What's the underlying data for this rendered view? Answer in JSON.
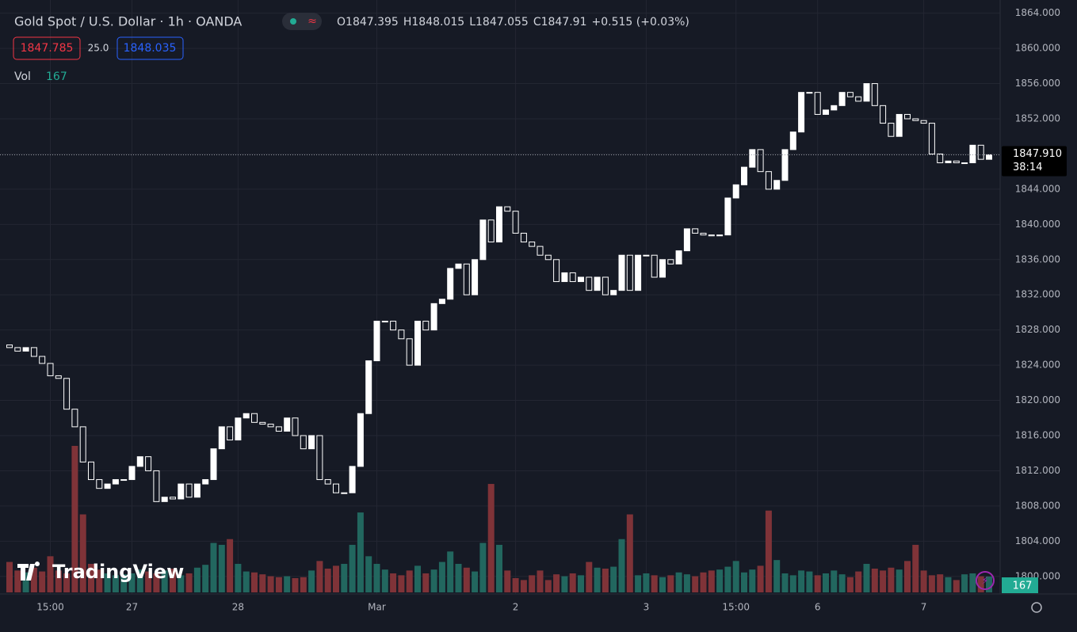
{
  "chart_data": {
    "type": "candlestick",
    "title": "Gold Spot / U.S. Dollar · 1h · OANDA",
    "ohlc": [
      {
        "label": "O",
        "value": 1847.395
      },
      {
        "label": "H",
        "value": 1848.015
      },
      {
        "label": "L",
        "value": 1847.055
      },
      {
        "label": "C",
        "value": 1847.91
      }
    ],
    "change": "+0.515 (+0.03%)",
    "bid": "1847.785",
    "spread": "25.0",
    "ask": "1848.035",
    "volume_label": "Vol",
    "watermark": "TradingView",
    "last_price": {
      "value": 1847.91,
      "label": "1847.910"
    },
    "countdown": "38:14",
    "up_color": "#ffffff",
    "down_color": "#161a25",
    "volume_up_color": "#22675f",
    "volume_down_color": "#7f3338",
    "volume_badge_color": "#22ab94",
    "ylim": [
      1798,
      1865.5
    ],
    "yticks": [
      {
        "value": 1800,
        "label": "1800.000"
      },
      {
        "value": 1804,
        "label": "1804.000"
      },
      {
        "value": 1808,
        "label": "1808.000"
      },
      {
        "value": 1812,
        "label": "1812.000"
      },
      {
        "value": 1816,
        "label": "1816.000"
      },
      {
        "value": 1820,
        "label": "1820.000"
      },
      {
        "value": 1824,
        "label": "1824.000"
      },
      {
        "value": 1828,
        "label": "1828.000"
      },
      {
        "value": 1832,
        "label": "1832.000"
      },
      {
        "value": 1836,
        "label": "1836.000"
      },
      {
        "value": 1840,
        "label": "1840.000"
      },
      {
        "value": 1844,
        "label": "1844.000"
      },
      {
        "value": 1848,
        "label": "1848.000"
      },
      {
        "value": 1852,
        "label": "1852.000"
      },
      {
        "value": 1856,
        "label": "1856.000"
      },
      {
        "value": 1860,
        "label": "1860.000"
      },
      {
        "value": 1864,
        "label": "1864.000"
      }
    ],
    "grid": true,
    "categories": [
      null,
      null,
      null,
      null,
      null,
      "15:00",
      null,
      null,
      null,
      null,
      null,
      null,
      null,
      null,
      null,
      "27",
      null,
      null,
      null,
      null,
      null,
      null,
      null,
      null,
      null,
      null,
      null,
      null,
      "28",
      null,
      null,
      null,
      null,
      null,
      null,
      null,
      null,
      null,
      null,
      null,
      null,
      null,
      null,
      null,
      null,
      "Mar",
      null,
      null,
      null,
      null,
      null,
      null,
      null,
      null,
      null,
      null,
      null,
      null,
      null,
      null,
      null,
      null,
      "2",
      null,
      null,
      null,
      null,
      null,
      null,
      null,
      null,
      null,
      null,
      null,
      null,
      null,
      null,
      null,
      "3",
      null,
      null,
      null,
      null,
      null,
      null,
      null,
      null,
      null,
      null,
      "15:00",
      null,
      null,
      null,
      null,
      null,
      null,
      null,
      null,
      null,
      "6",
      null,
      null,
      null,
      null,
      null,
      null,
      null,
      null,
      null,
      null,
      null,
      null,
      "7",
      null,
      null,
      null,
      null,
      null,
      null,
      null,
      null
    ],
    "open": [
      1826.3,
      1826.0,
      1825.6,
      1826.0,
      1825.0,
      1824.2,
      1822.8,
      1822.5,
      1819.0,
      1817.0,
      1813.0,
      1811.0,
      1810.0,
      1810.5,
      1811.0,
      1811.0,
      1812.5,
      1813.6,
      1812.0,
      1808.5,
      1809.0,
      1808.8,
      1810.5,
      1809.0,
      1810.5,
      1811.0,
      1814.5,
      1817.0,
      1815.5,
      1818.0,
      1818.5,
      1817.5,
      1817.3,
      1817.0,
      1816.5,
      1818.0,
      1816.0,
      1814.5,
      1816.0,
      1811.0,
      1810.5,
      1809.5,
      1809.5,
      1812.5,
      1818.5,
      1824.5,
      1829.0,
      1829.0,
      1828.0,
      1827.0,
      1824.0,
      1829.0,
      1828.0,
      1831.0,
      1831.5,
      1835.0,
      1835.5,
      1832.0,
      1836.0,
      1840.5,
      1838.0,
      1842.0,
      1841.5,
      1839.0,
      1838.0,
      1837.5,
      1836.5,
      1836.0,
      1833.5,
      1834.5,
      1833.5,
      1834.0,
      1832.5,
      1834.0,
      1832.0,
      1832.5,
      1836.5,
      1832.5,
      1836.5,
      1836.5,
      1834.0,
      1836.0,
      1835.5,
      1837.0,
      1839.5,
      1839.0,
      1838.8,
      1838.7,
      1838.8,
      1843.0,
      1844.5,
      1846.5,
      1848.5,
      1846.0,
      1844.0,
      1845.0,
      1848.5,
      1850.5,
      1855.0,
      1855.0,
      1852.5,
      1853.0,
      1853.5,
      1855.0,
      1854.5,
      1854.0,
      1856.0,
      1853.5,
      1851.5,
      1850.0,
      1852.5,
      1852.0,
      1851.8,
      1851.5,
      1848.0,
      1847.0,
      1847.2,
      1847.0,
      1847.0,
      1849.0,
      1847.395
    ],
    "close": [
      1826.0,
      1825.6,
      1826.0,
      1825.0,
      1824.2,
      1822.8,
      1822.5,
      1819.0,
      1817.0,
      1813.0,
      1811.0,
      1810.0,
      1810.5,
      1811.0,
      1811.0,
      1812.5,
      1813.6,
      1812.0,
      1808.5,
      1809.0,
      1808.8,
      1810.5,
      1809.0,
      1810.5,
      1811.0,
      1814.5,
      1817.0,
      1815.5,
      1818.0,
      1818.5,
      1817.5,
      1817.3,
      1817.0,
      1816.5,
      1818.0,
      1816.0,
      1814.5,
      1816.0,
      1811.0,
      1810.5,
      1809.5,
      1809.5,
      1812.5,
      1818.5,
      1824.5,
      1829.0,
      1829.0,
      1828.0,
      1827.0,
      1824.0,
      1829.0,
      1828.0,
      1831.0,
      1831.5,
      1835.0,
      1835.5,
      1832.0,
      1836.0,
      1840.5,
      1838.0,
      1842.0,
      1841.5,
      1839.0,
      1838.0,
      1837.5,
      1836.5,
      1836.0,
      1833.5,
      1834.5,
      1833.5,
      1834.0,
      1832.5,
      1834.0,
      1832.0,
      1832.5,
      1836.5,
      1832.5,
      1836.5,
      1836.5,
      1834.0,
      1836.0,
      1835.5,
      1837.0,
      1839.5,
      1839.0,
      1838.8,
      1838.7,
      1838.8,
      1843.0,
      1844.5,
      1846.5,
      1848.5,
      1846.0,
      1844.0,
      1845.0,
      1848.5,
      1850.5,
      1855.0,
      1855.0,
      1852.5,
      1853.0,
      1853.5,
      1855.0,
      1854.5,
      1854.0,
      1856.0,
      1853.5,
      1851.5,
      1850.0,
      1852.5,
      1852.0,
      1851.8,
      1851.5,
      1848.0,
      1847.0,
      1847.2,
      1847.0,
      1847.0,
      1849.0,
      1847.395,
      1847.91
    ],
    "volume": [
      320,
      230,
      210,
      260,
      220,
      380,
      230,
      200,
      1540,
      820,
      300,
      240,
      200,
      180,
      190,
      200,
      240,
      220,
      200,
      230,
      250,
      180,
      200,
      260,
      290,
      520,
      500,
      560,
      300,
      220,
      210,
      190,
      170,
      160,
      170,
      150,
      160,
      230,
      330,
      250,
      280,
      300,
      500,
      840,
      380,
      300,
      240,
      200,
      180,
      230,
      280,
      200,
      240,
      320,
      430,
      300,
      260,
      220,
      520,
      1140,
      500,
      230,
      150,
      130,
      180,
      230,
      130,
      190,
      170,
      200,
      180,
      320,
      260,
      250,
      270,
      560,
      820,
      180,
      200,
      180,
      160,
      180,
      210,
      190,
      170,
      210,
      230,
      240,
      270,
      330,
      210,
      240,
      280,
      860,
      340,
      200,
      180,
      230,
      220,
      180,
      200,
      230,
      190,
      160,
      220,
      300,
      250,
      230,
      260,
      240,
      330,
      500,
      230,
      180,
      190,
      160,
      130,
      190,
      200,
      170,
      167
    ]
  }
}
